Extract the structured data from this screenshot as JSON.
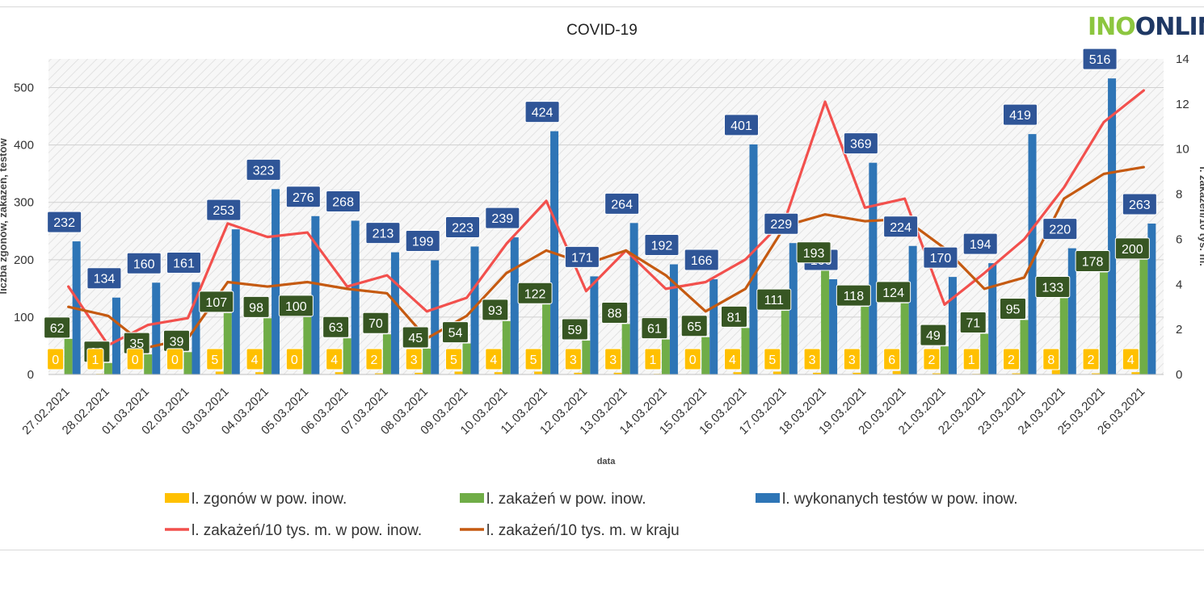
{
  "logo": {
    "part1": "INO",
    "part2": "ONLIN"
  },
  "chart_data": {
    "type": "bar",
    "title": "COVID-19",
    "xlabel": "data",
    "ylabel_left": "liczba zgonów, zakażeń, testów",
    "ylabel_right": "l. zakażeń/10 tys. m.",
    "ylim_left": [
      0,
      550
    ],
    "yticks_left": [
      0,
      100,
      200,
      300,
      400,
      500
    ],
    "ylim_right": [
      0,
      14
    ],
    "yticks_right": [
      0,
      2,
      4,
      6,
      8,
      10,
      12,
      14
    ],
    "categories": [
      "27.02.2021",
      "28.02.2021",
      "01.03.2021",
      "02.03.2021",
      "03.03.2021",
      "04.03.2021",
      "05.03.2021",
      "06.03.2021",
      "07.03.2021",
      "08.03.2021",
      "09.03.2021",
      "10.03.2021",
      "11.03.2021",
      "12.03.2021",
      "13.03.2021",
      "14.03.2021",
      "15.03.2021",
      "16.03.2021",
      "17.03.2021",
      "18.03.2021",
      "19.03.2021",
      "20.03.2021",
      "21.03.2021",
      "22.03.2021",
      "23.03.2021",
      "24.03.2021",
      "25.03.2021",
      "26.03.2021"
    ],
    "series": [
      {
        "name": "l. zgonów w pow. inow.",
        "type": "bar",
        "axis": "left",
        "color": "#ffc000",
        "values": [
          0,
          1,
          0,
          0,
          5,
          4,
          0,
          4,
          2,
          3,
          5,
          4,
          5,
          3,
          3,
          1,
          0,
          4,
          5,
          3,
          3,
          6,
          2,
          1,
          2,
          8,
          2,
          4
        ]
      },
      {
        "name": "l. zakażeń w pow. inow.",
        "type": "bar",
        "axis": "left",
        "color": "#70ad47",
        "values": [
          62,
          20,
          35,
          39,
          107,
          98,
          100,
          63,
          70,
          45,
          54,
          93,
          122,
          59,
          88,
          61,
          65,
          81,
          111,
          193,
          118,
          124,
          49,
          71,
          95,
          133,
          178,
          200
        ]
      },
      {
        "name": "l. wykonanych testów w pow. inow.",
        "type": "bar",
        "axis": "left",
        "color": "#2e75b6",
        "values": [
          232,
          134,
          160,
          161,
          253,
          323,
          276,
          268,
          213,
          199,
          223,
          239,
          424,
          171,
          264,
          192,
          166,
          401,
          229,
          166,
          369,
          224,
          170,
          194,
          419,
          220,
          516,
          263
        ]
      },
      {
        "name": "l. zakażeń/10 tys. m. w pow. inow.",
        "type": "line",
        "axis": "right",
        "color": "#f2504d",
        "values": [
          3.9,
          1.3,
          2.2,
          2.5,
          6.7,
          6.1,
          6.3,
          3.9,
          4.4,
          2.8,
          3.4,
          5.8,
          7.7,
          3.7,
          5.5,
          3.8,
          4.1,
          5.1,
          6.9,
          12.1,
          7.4,
          7.8,
          3.1,
          4.5,
          6.0,
          8.3,
          11.2,
          12.6
        ]
      },
      {
        "name": "l. zakażeń/10 tys. m. w kraju",
        "type": "line",
        "axis": "right",
        "color": "#c55a11",
        "values": [
          3.0,
          2.6,
          1.2,
          1.6,
          4.1,
          3.9,
          4.1,
          3.8,
          3.6,
          1.6,
          2.6,
          4.5,
          5.5,
          4.9,
          5.5,
          4.4,
          2.8,
          3.8,
          6.6,
          7.1,
          6.8,
          6.9,
          5.6,
          3.8,
          4.3,
          7.8,
          8.9,
          9.2
        ]
      }
    ]
  }
}
